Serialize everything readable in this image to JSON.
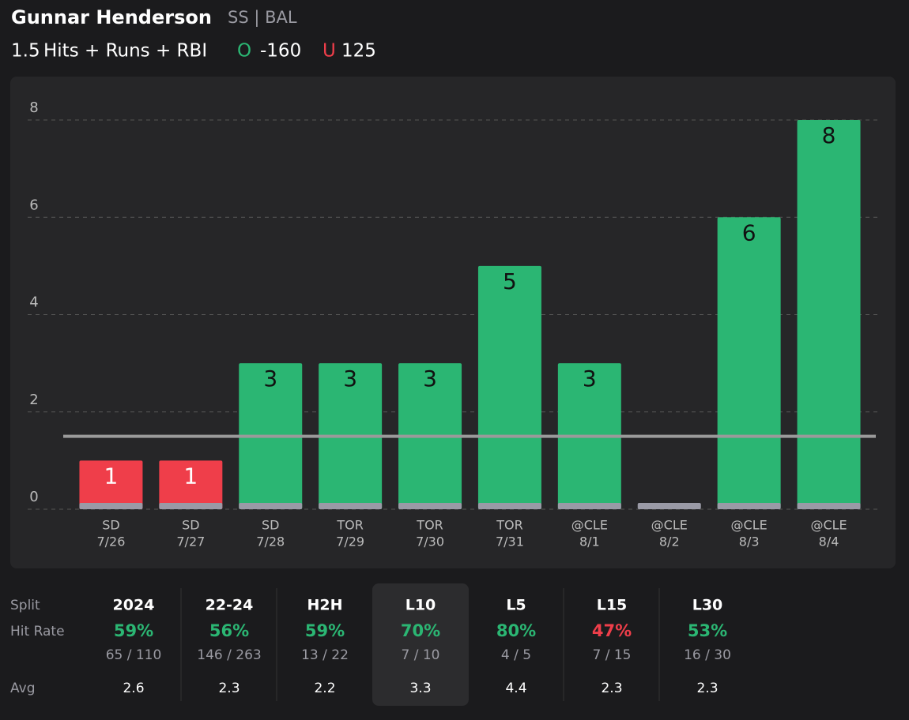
{
  "header": {
    "player": "Gunnar Henderson",
    "position": "SS | BAL",
    "line": 1.5,
    "market": "Hits + Runs + RBI",
    "over_label": "O",
    "over_odds": -160,
    "under_label": "U",
    "under_odds": 125
  },
  "chart_data": {
    "type": "bar",
    "categories": [
      "SD",
      "SD",
      "SD",
      "TOR",
      "TOR",
      "TOR",
      "@CLE",
      "@CLE",
      "@CLE",
      "@CLE"
    ],
    "dates": [
      "7/26",
      "7/27",
      "7/28",
      "7/29",
      "7/30",
      "7/31",
      "8/1",
      "8/2",
      "8/3",
      "8/4"
    ],
    "values": [
      1,
      1,
      3,
      3,
      3,
      5,
      3,
      0,
      6,
      8
    ],
    "over_color": "#2bb673",
    "under_color": "#ef3e4a",
    "ylim": [
      0,
      8
    ],
    "yticks": [
      0,
      2,
      4,
      6,
      8
    ],
    "grid": true
  },
  "splits": {
    "row_labels": [
      "Split",
      "Hit Rate",
      "Avg"
    ],
    "selected": 3,
    "columns": [
      {
        "name": "2024",
        "rate": "59%",
        "count": "65 / 110",
        "avg": "2.6",
        "color": "#2bb673"
      },
      {
        "name": "22-24",
        "rate": "56%",
        "count": "146 / 263",
        "avg": "2.3",
        "color": "#2bb673"
      },
      {
        "name": "H2H",
        "rate": "59%",
        "count": "13 / 22",
        "avg": "2.2",
        "color": "#2bb673"
      },
      {
        "name": "L10",
        "rate": "70%",
        "count": "7 / 10",
        "avg": "3.3",
        "color": "#2bb673"
      },
      {
        "name": "L5",
        "rate": "80%",
        "count": "4 / 5",
        "avg": "4.4",
        "color": "#2bb673"
      },
      {
        "name": "L15",
        "rate": "47%",
        "count": "7 / 15",
        "avg": "2.3",
        "color": "#ef3e4a"
      },
      {
        "name": "L30",
        "rate": "53%",
        "count": "16 / 30",
        "avg": "2.3",
        "color": "#2bb673"
      }
    ]
  }
}
